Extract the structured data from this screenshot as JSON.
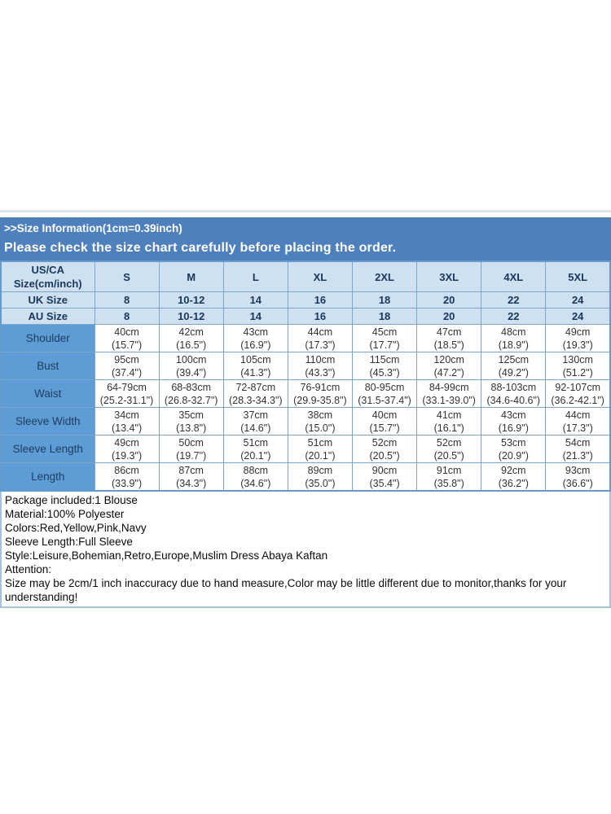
{
  "header": {
    "line1": ">>Size Information(1cm=0.39inch)",
    "line2": "Please check the size chart carefully before placing the order."
  },
  "size_table": {
    "corner_line1": "US/CA",
    "corner_line2": "Size(cm/inch)",
    "columns": [
      "S",
      "M",
      "L",
      "XL",
      "2XL",
      "3XL",
      "4XL",
      "5XL"
    ],
    "uk_row": {
      "label": "UK Size",
      "values": [
        "8",
        "10-12",
        "14",
        "16",
        "18",
        "20",
        "22",
        "24"
      ]
    },
    "au_row": {
      "label": "AU Size",
      "values": [
        "8",
        "10-12",
        "14",
        "16",
        "18",
        "20",
        "22",
        "24"
      ]
    },
    "measure_rows": [
      {
        "label": "Shoulder",
        "cm": [
          "40cm",
          "42cm",
          "43cm",
          "44cm",
          "45cm",
          "47cm",
          "48cm",
          "49cm"
        ],
        "inch": [
          "(15.7\")",
          "(16.5\")",
          "(16.9\")",
          "(17.3\")",
          "(17.7\")",
          "(18.5\")",
          "(18.9\")",
          "(19.3\")"
        ]
      },
      {
        "label": "Bust",
        "cm": [
          "95cm",
          "100cm",
          "105cm",
          "110cm",
          "115cm",
          "120cm",
          "125cm",
          "130cm"
        ],
        "inch": [
          "(37.4\")",
          "(39.4\")",
          "(41.3\")",
          "(43.3\")",
          "(45.3\")",
          "(47.2\")",
          "(49.2\")",
          "(51.2\")"
        ]
      },
      {
        "label": "Waist",
        "cm": [
          "64-79cm",
          "68-83cm",
          "72-87cm",
          "76-91cm",
          "80-95cm",
          "84-99cm",
          "88-103cm",
          "92-107cm"
        ],
        "inch": [
          "(25.2-31.1\")",
          "(26.8-32.7\")",
          "(28.3-34.3\")",
          "(29.9-35.8\")",
          "(31.5-37.4\")",
          "(33.1-39.0\")",
          "(34.6-40.6\")",
          "(36.2-42.1\")"
        ]
      },
      {
        "label": "Sleeve Width",
        "cm": [
          "34cm",
          "35cm",
          "37cm",
          "38cm",
          "40cm",
          "41cm",
          "43cm",
          "44cm"
        ],
        "inch": [
          "(13.4\")",
          "(13.8\")",
          "(14.6\")",
          "(15.0\")",
          "(15.7\")",
          "(16.1\")",
          "(16.9\")",
          "(17.3\")"
        ]
      },
      {
        "label": "Sleeve Length",
        "cm": [
          "49cm",
          "50cm",
          "51cm",
          "51cm",
          "52cm",
          "52cm",
          "53cm",
          "54cm"
        ],
        "inch": [
          "(19.3\")",
          "(19.7\")",
          "(20.1\")",
          "(20.1\")",
          "(20.5\")",
          "(20.5\")",
          "(20.9\")",
          "(21.3\")"
        ]
      },
      {
        "label": "Length",
        "cm": [
          "86cm",
          "87cm",
          "88cm",
          "89cm",
          "90cm",
          "91cm",
          "92cm",
          "93cm"
        ],
        "inch": [
          "(33.9\")",
          "(34.3\")",
          "(34.6\")",
          "(35.0\")",
          "(35.4\")",
          "(35.8\")",
          "(36.2\")",
          "(36.6\")"
        ]
      }
    ]
  },
  "details": {
    "lines": [
      "Package included:1 Blouse",
      "Material:100% Polyester",
      "Colors:Red,Yellow,Pink,Navy",
      "Sleeve Length:Full Sleeve",
      "Style:Leisure,Bohemian,Retro,Europe,Muslim Dress Abaya Kaftan",
      "Attention:",
      "Size may be 2cm/1 inch inaccuracy due to hand measure,Color may be little different due to monitor,thanks for your understanding!"
    ]
  },
  "colors": {
    "header_bar": "#4e80bd",
    "light_cell": "#cfe0f0",
    "label_cell": "#5e9cd6",
    "inner_border": "#7aa5cd",
    "outer_border": "#6699cc",
    "header_text": "#17375d",
    "details_border": "#a5c3e1"
  }
}
